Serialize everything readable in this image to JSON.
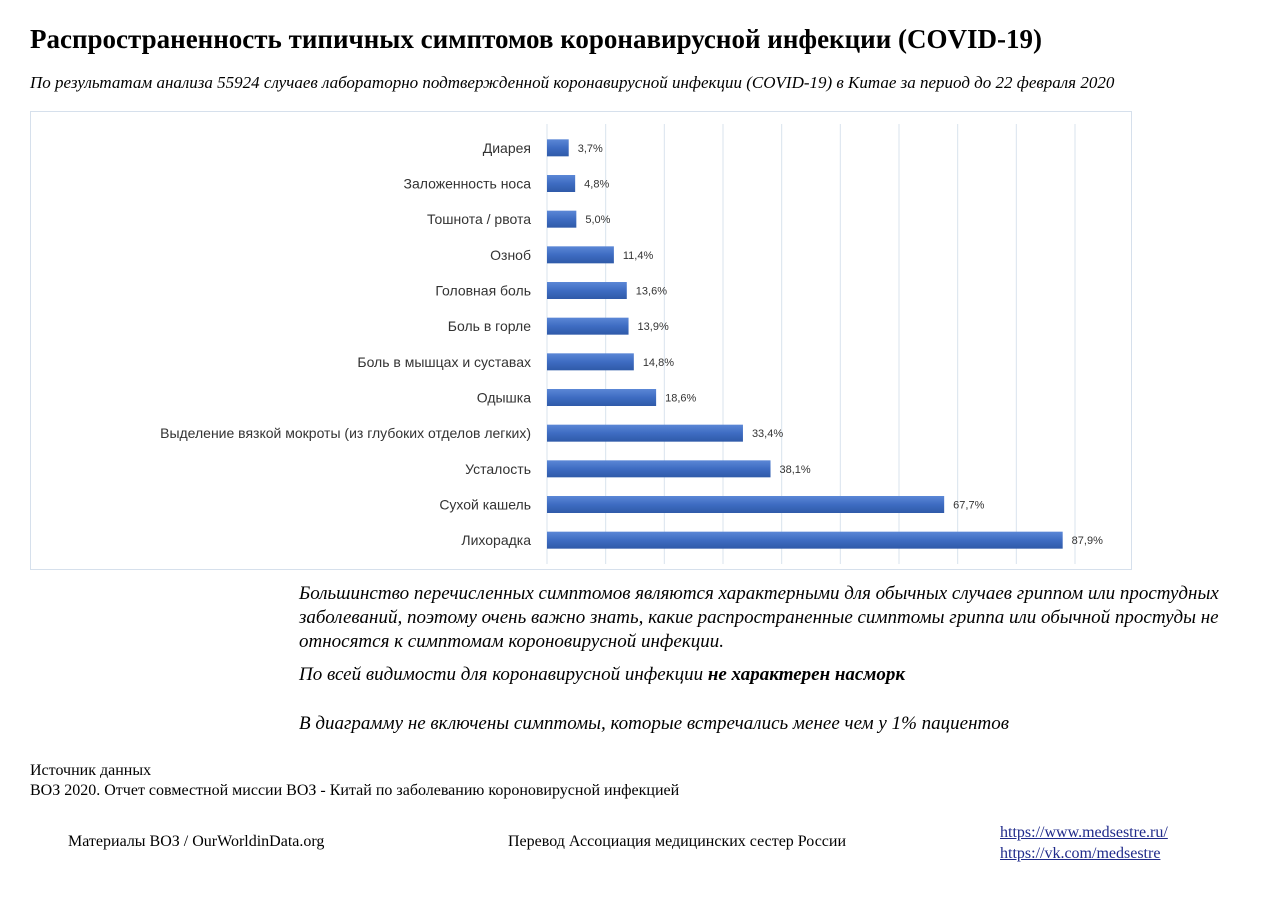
{
  "title": "Распространенность типичных симптомов коронавирусной инфекции (COVID-19)",
  "subtitle": "По результатам анализа 55924 случаев лабораторно подтвержденной коронавирусной инфекции (COVID-19) в Китае за период до 22 февраля 2020",
  "chart_data": {
    "type": "bar",
    "orientation": "horizontal",
    "categories": [
      "Диарея",
      "Заложенность носа",
      "Тошнота / рвота",
      "Озноб",
      "Головная боль",
      "Боль в горле",
      "Боль в мышцах и суставах",
      "Одышка",
      "Выделение вязкой мокроты (из глубоких отделов легких)",
      "Усталость",
      "Сухой кашель",
      "Лихорадка"
    ],
    "values": [
      3.7,
      4.8,
      5.0,
      11.4,
      13.6,
      13.9,
      14.8,
      18.6,
      33.4,
      38.1,
      67.7,
      87.9
    ],
    "value_labels": [
      "3,7%",
      "4,8%",
      "5,0%",
      "11,4%",
      "13,6%",
      "13,9%",
      "14,8%",
      "18,6%",
      "33,4%",
      "38,1%",
      "67,7%",
      "87,9%"
    ],
    "xlim": [
      0,
      90
    ],
    "grid": true,
    "bar_color": "#4472c4"
  },
  "notes": {
    "n1": "Большинство перечисленных симптомов являются характерными для обычных случаев гриппом или простудных заболеваний, поэтому очень важно знать, какие распространенные симптомы гриппа или обычной простуды не относятся к симптомам короновирусной инфекции.",
    "n2_prefix": "По всей видимости для коронавирусной инфекции ",
    "n2_bold": "не характерен насморк",
    "n3": "В диаграмму не включены симптомы, которые встречались менее чем у 1% пациентов"
  },
  "source": {
    "heading": "Источник данных",
    "text": "ВОЗ 2020. Отчет совместной миссии ВОЗ - Китай по заболеванию короновирусной инфекцией"
  },
  "footer": {
    "left": "Материалы ВОЗ / OurWorldinData.org",
    "middle": "Перевод Ассоциация медицинских сестер России",
    "link1": "https://www.medsestre.ru/",
    "link2": "https://vk.com/medsestre"
  }
}
